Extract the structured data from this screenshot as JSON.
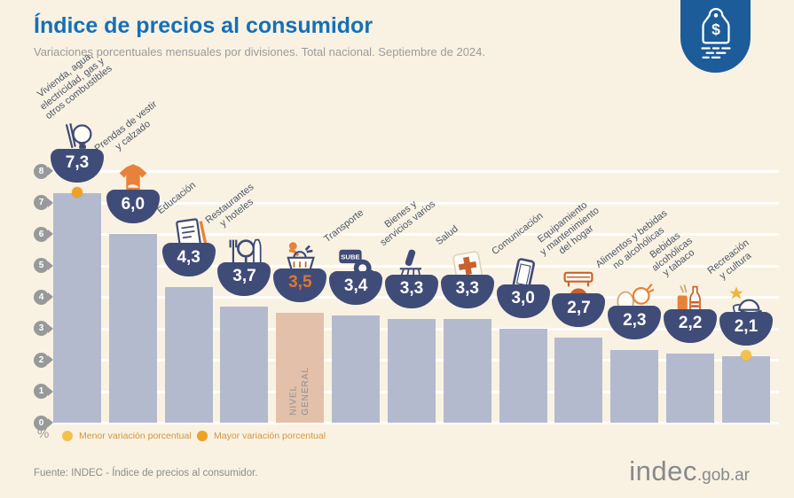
{
  "header": {
    "title": "Índice de precios al consumidor",
    "subtitle": "Variaciones porcentuales mensuales por divisiones. Total nacional. Septiembre de 2024."
  },
  "chart_data": {
    "type": "bar",
    "title": "Índice de precios al consumidor",
    "subtitle": "Variaciones porcentuales mensuales por divisiones. Total nacional. Septiembre de 2024.",
    "unit": "%",
    "ylim": [
      0,
      8
    ],
    "yticks": [
      8,
      7,
      6,
      5,
      4,
      3,
      2,
      1,
      0
    ],
    "grid": true,
    "items": [
      {
        "category": "Vivienda, agua, electricidad, gas y otros combustibles",
        "label_lines": "Vivienda, agua,\nelectricidad, gas y\notros combustibles",
        "value": 7.3,
        "value_label": "7,3",
        "icon": "lightbulb-electricity-icon",
        "marker": "mayor"
      },
      {
        "category": "Prendas de vestir y calzado",
        "label_lines": "Prendas de vestir\ny calzado",
        "value": 6.0,
        "value_label": "6,0",
        "icon": "tshirt-icon"
      },
      {
        "category": "Educación",
        "label_lines": "Educación",
        "value": 4.3,
        "value_label": "4,3",
        "icon": "notebook-icon"
      },
      {
        "category": "Restaurantes y hoteles",
        "label_lines": "Restaurantes\ny hoteles",
        "value": 3.7,
        "value_label": "3,7",
        "icon": "restaurant-icon"
      },
      {
        "category": "Nivel general",
        "label_lines": "",
        "value": 3.5,
        "value_label": "3,5",
        "icon": "shopping-basket-icon",
        "highlight": true,
        "bar_inner_label": "NIVEL\nGENERAL"
      },
      {
        "category": "Transporte",
        "label_lines": "Transporte",
        "value": 3.4,
        "value_label": "3,4",
        "icon": "sube-card-icon"
      },
      {
        "category": "Bienes y servicios varios",
        "label_lines": "Bienes y\nservicios varios",
        "value": 3.3,
        "value_label": "3,3",
        "icon": "toiletries-icon"
      },
      {
        "category": "Salud",
        "label_lines": "Salud",
        "value": 3.3,
        "value_label": "3,3",
        "icon": "first-aid-icon"
      },
      {
        "category": "Comunicación",
        "label_lines": "Comunicación",
        "value": 3.0,
        "value_label": "3,0",
        "icon": "smartphone-icon"
      },
      {
        "category": "Equipamiento y mantenimiento del hogar",
        "label_lines": "Equipamiento\ny mantenimiento\ndel hogar",
        "value": 2.7,
        "value_label": "2,7",
        "icon": "home-equipment-icon"
      },
      {
        "category": "Alimentos y bebidas no alcohólicas",
        "label_lines": "Alimentos y bebidas\nno alcohólicas",
        "value": 2.3,
        "value_label": "2,3",
        "icon": "food-icon"
      },
      {
        "category": "Bebidas alcohólicas y tabaco",
        "label_lines": "Bebidas\nalcohólicas\ny tabaco",
        "value": 2.2,
        "value_label": "2,2",
        "icon": "drinks-tobacco-icon"
      },
      {
        "category": "Recreación y cultura",
        "label_lines": "Recreación\ny cultura",
        "value": 2.1,
        "value_label": "2,1",
        "icon": "cap-star-icon",
        "marker": "menor"
      }
    ]
  },
  "legend": {
    "percent_symbol": "%",
    "items": [
      {
        "label": "Menor variación porcentual",
        "color": "#F2C14E"
      },
      {
        "label": "Mayor variación porcentual",
        "color": "#EFA125"
      }
    ]
  },
  "footer": {
    "source": "Fuente: INDEC - Índice de precios al consumidor.",
    "logo_main": "indec",
    "logo_suffix": ".gob.ar"
  },
  "colors": {
    "background": "#F9F2E2",
    "title_blue": "#1470B8",
    "bar": "#B4BACE",
    "bar_highlight": "#E3C0A9",
    "badge_navy": "#404C78",
    "value_text": "#FFFFFF",
    "value_text_highlight": "#E0762E",
    "tag_badge_blue": "#1C5C99"
  }
}
